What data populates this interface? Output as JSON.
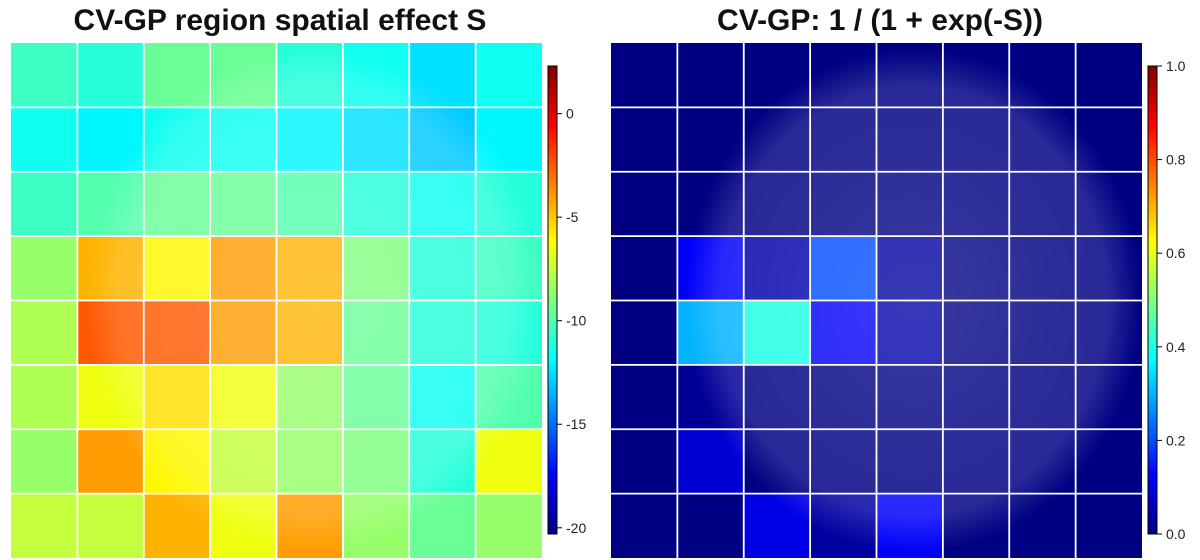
{
  "chart_data": [
    {
      "type": "heatmap",
      "title": "CV-GP region spatial effect S",
      "colorbar": {
        "min": -20.3,
        "max": 2.3,
        "ticks": [
          0,
          -5,
          -10,
          -15,
          -20
        ],
        "tick_labels": [
          "0",
          "-5",
          "-10",
          "-15",
          "-20"
        ]
      },
      "grid": {
        "rows": 8,
        "cols": 8
      },
      "background_image": "brain slice (grayscale) under semi-transparent overlay",
      "region_values": [
        [
          -10.5,
          -11.0,
          -9.5,
          -9.5,
          -11.0,
          -11.5,
          -12.5,
          -11.5
        ],
        [
          -11.5,
          -12.0,
          -11.5,
          -11.5,
          -12.0,
          -12.5,
          -13.0,
          -12.0
        ],
        [
          -10.5,
          -10.0,
          -9.5,
          -9.5,
          -10.0,
          -11.0,
          -11.5,
          -11.0
        ],
        [
          -8.5,
          -4.5,
          -6.0,
          -4.0,
          -4.5,
          -9.0,
          -11.0,
          -10.5
        ],
        [
          -8.0,
          -2.5,
          -2.5,
          -4.0,
          -4.5,
          -9.5,
          -11.0,
          -11.0
        ],
        [
          -8.0,
          -6.5,
          -5.5,
          -6.5,
          -8.5,
          -9.5,
          -11.5,
          -10.0
        ],
        [
          -8.5,
          -4.0,
          -6.0,
          -7.5,
          -8.5,
          -9.0,
          -11.0,
          -6.5
        ],
        [
          -7.5,
          -7.5,
          -4.5,
          -6.5,
          -4.0,
          -8.5,
          -9.5,
          -8.5
        ]
      ]
    },
    {
      "type": "heatmap",
      "title": "CV-GP: 1 / (1 + exp(-S))",
      "colorbar": {
        "min": 0,
        "max": 1,
        "ticks": [
          1.0,
          0.8,
          0.6,
          0.4,
          0.2,
          0.0
        ],
        "tick_labels": [
          "1.0",
          "0.8",
          "0.6",
          "0.4",
          "0.2",
          "0.0"
        ]
      },
      "grid": {
        "rows": 8,
        "cols": 8
      },
      "background_image": "brain slice (grayscale) under semi-transparent overlay",
      "region_values": [
        [
          0.0,
          0.0,
          0.0,
          0.0,
          0.0,
          0.0,
          0.0,
          0.0
        ],
        [
          0.0,
          0.0,
          0.0,
          0.0,
          0.0,
          0.0,
          0.0,
          0.0
        ],
        [
          0.0,
          0.0,
          0.0,
          0.0,
          0.0,
          0.0,
          0.0,
          0.0
        ],
        [
          0.0,
          0.12,
          0.04,
          0.2,
          0.03,
          0.0,
          0.0,
          0.0
        ],
        [
          0.0,
          0.3,
          0.4,
          0.12,
          0.04,
          0.0,
          0.0,
          0.0
        ],
        [
          0.0,
          0.02,
          0.0,
          0.0,
          0.0,
          0.0,
          0.0,
          0.0
        ],
        [
          0.0,
          0.08,
          0.0,
          0.0,
          0.0,
          0.0,
          0.0,
          0.0
        ],
        [
          0.0,
          0.0,
          0.1,
          0.03,
          0.12,
          0.0,
          0.0,
          0.0
        ]
      ]
    }
  ]
}
